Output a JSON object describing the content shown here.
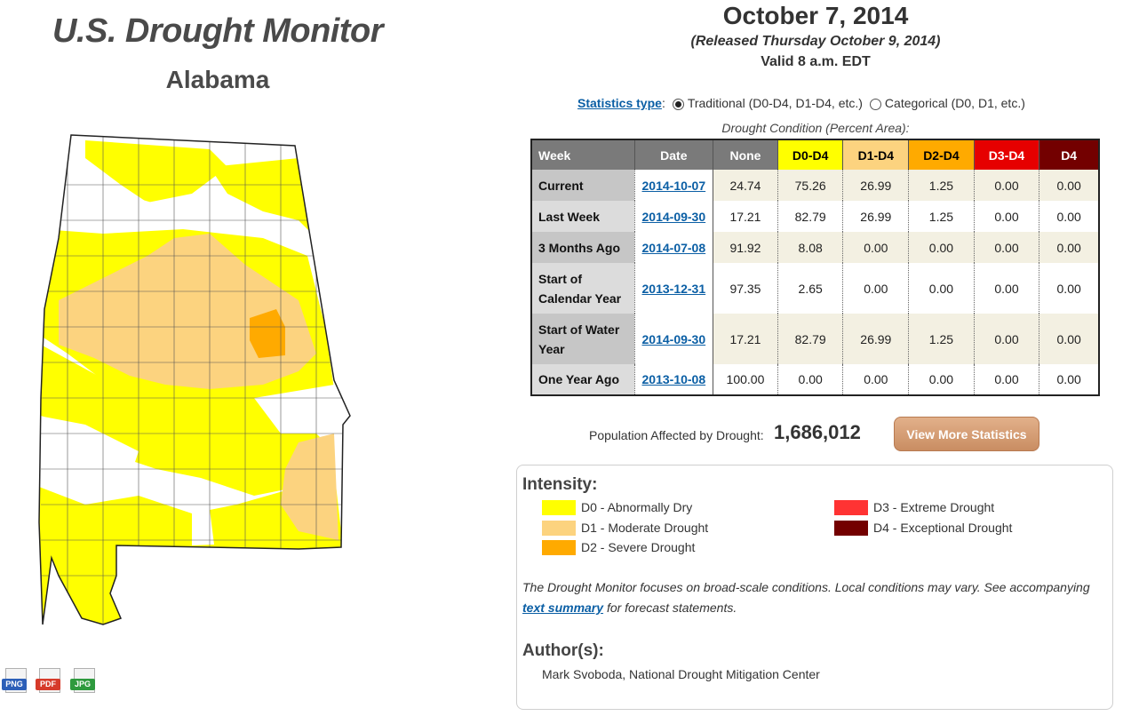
{
  "header": {
    "site_title": "U.S. Drought Monitor",
    "state": "Alabama"
  },
  "release": {
    "date": "October 7, 2014",
    "released": "(Released Thursday October 9, 2014)",
    "valid": "Valid 8 a.m. EDT"
  },
  "stats_type": {
    "label": "Statistics type",
    "separator": ":",
    "options": [
      {
        "label": "Traditional (D0-D4, D1-D4, etc.)",
        "selected": true
      },
      {
        "label": "Categorical (D0, D1, etc.)",
        "selected": false
      }
    ]
  },
  "table": {
    "caption": "Drought Condition (Percent Area):",
    "headers": [
      "Week",
      "Date",
      "None",
      "D0-D4",
      "D1-D4",
      "D2-D4",
      "D3-D4",
      "D4"
    ],
    "header_colors": [
      "#7a7a7a",
      "#7a7a7a",
      "#7a7a7a",
      "#ffff00",
      "#fcd37f",
      "#ffaa00",
      "#e60000",
      "#730000"
    ],
    "header_text_colors": [
      "#ffffff",
      "#ffffff",
      "#ffffff",
      "#000000",
      "#000000",
      "#000000",
      "#ffffff",
      "#ffffff"
    ],
    "rows": [
      {
        "week": "Current",
        "date": "2014-10-07",
        "values": [
          "24.74",
          "75.26",
          "26.99",
          "1.25",
          "0.00",
          "0.00"
        ]
      },
      {
        "week": "Last Week",
        "date": "2014-09-30",
        "values": [
          "17.21",
          "82.79",
          "26.99",
          "1.25",
          "0.00",
          "0.00"
        ]
      },
      {
        "week": "3 Months Ago",
        "date": "2014-07-08",
        "values": [
          "91.92",
          "8.08",
          "0.00",
          "0.00",
          "0.00",
          "0.00"
        ]
      },
      {
        "week": "Start of Calendar Year",
        "date": "2013-12-31",
        "values": [
          "97.35",
          "2.65",
          "0.00",
          "0.00",
          "0.00",
          "0.00"
        ]
      },
      {
        "week": "Start of Water Year",
        "date": "2014-09-30",
        "values": [
          "17.21",
          "82.79",
          "26.99",
          "1.25",
          "0.00",
          "0.00"
        ]
      },
      {
        "week": "One Year Ago",
        "date": "2013-10-08",
        "values": [
          "100.00",
          "0.00",
          "0.00",
          "0.00",
          "0.00",
          "0.00"
        ]
      }
    ]
  },
  "population": {
    "label": "Population Affected by Drought:",
    "value": "1,686,012"
  },
  "view_more_label": "View More Statistics",
  "legend": {
    "title": "Intensity:",
    "items": [
      {
        "label": "D0 - Abnormally Dry",
        "color": "#ffff00"
      },
      {
        "label": "D1 - Moderate Drought",
        "color": "#fcd37f"
      },
      {
        "label": "D2 - Severe Drought",
        "color": "#ffaa00"
      },
      {
        "label": "D3 - Extreme Drought",
        "color": "#ff3333"
      },
      {
        "label": "D4 - Exceptional Drought",
        "color": "#730000"
      }
    ]
  },
  "note": {
    "before": "The Drought Monitor focuses on broad-scale conditions. Local conditions may vary. See accompanying",
    "link": "text summary",
    "after": "for forecast statements."
  },
  "authors": {
    "title": "Author(s):",
    "name": "Mark Svoboda, National Drought Mitigation Center"
  },
  "downloads": [
    {
      "label": "PNG",
      "color": "#2c5fb8"
    },
    {
      "label": "PDF",
      "color": "#d63a2a"
    },
    {
      "label": "JPG",
      "color": "#2e9a3e"
    }
  ],
  "map_colors": {
    "none": "#ffffff",
    "d0": "#ffff00",
    "d1": "#fcd37f",
    "d2": "#ffaa00",
    "border": "#555555"
  }
}
